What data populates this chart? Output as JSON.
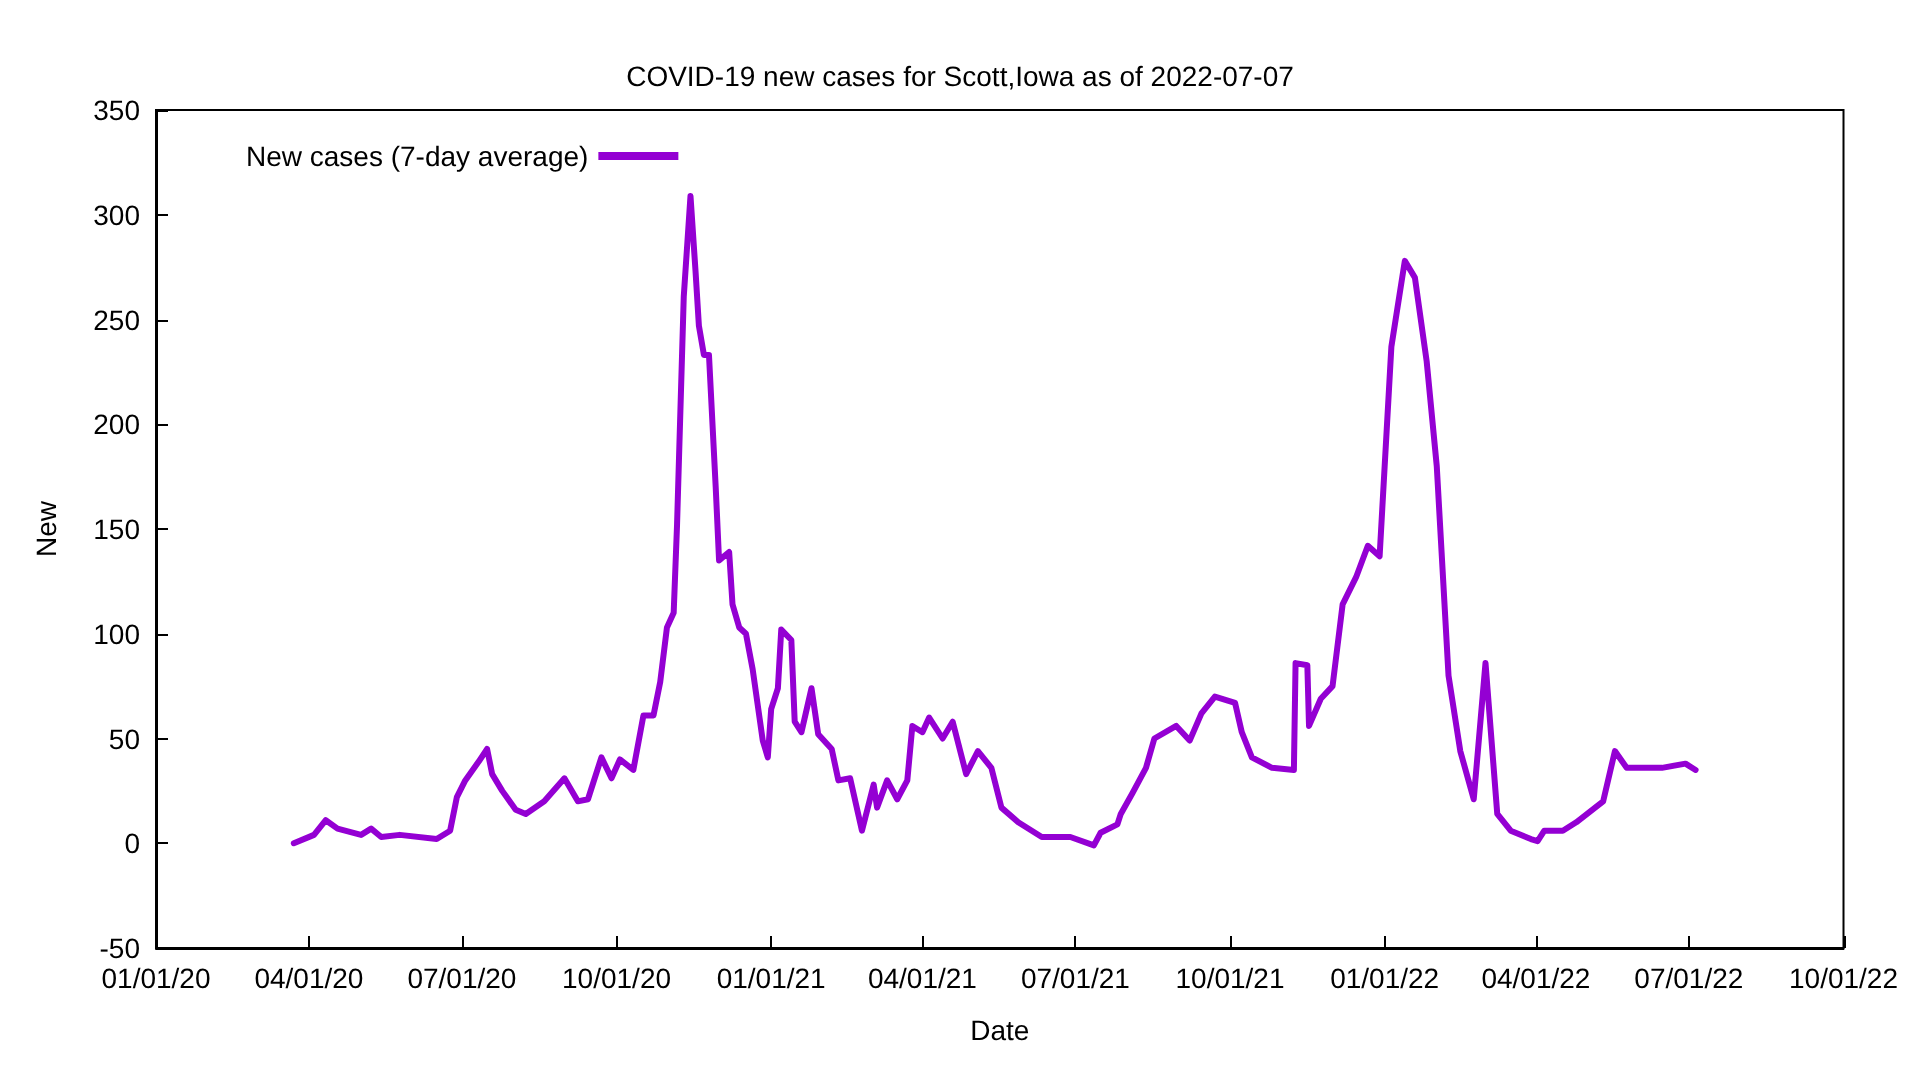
{
  "chart_data": {
    "type": "line",
    "title": "COVID-19 new cases for Scott,Iowa as of 2022-07-07",
    "xlabel": "Date",
    "ylabel": "New",
    "x": [
      "2020-03-23",
      "2020-04-04",
      "2020-04-11",
      "2020-04-18",
      "2020-05-02",
      "2020-05-08",
      "2020-05-14",
      "2020-05-25",
      "2020-06-16",
      "2020-06-24",
      "2020-06-28",
      "2020-07-03",
      "2020-07-11",
      "2020-07-16",
      "2020-07-19",
      "2020-07-25",
      "2020-08-02",
      "2020-08-08",
      "2020-08-19",
      "2020-08-31",
      "2020-09-08",
      "2020-09-14",
      "2020-09-22",
      "2020-09-28",
      "2020-10-03",
      "2020-10-11",
      "2020-10-17",
      "2020-10-23",
      "2020-10-27",
      "2020-10-31",
      "2020-11-04",
      "2020-11-06",
      "2020-11-10",
      "2020-11-14",
      "2020-11-17",
      "2020-11-19",
      "2020-11-22",
      "2020-11-25",
      "2020-11-29",
      "2020-12-01",
      "2020-12-07",
      "2020-12-09",
      "2020-12-13",
      "2020-12-17",
      "2020-12-21",
      "2020-12-27",
      "2020-12-30",
      "2021-01-01",
      "2021-01-05",
      "2021-01-07",
      "2021-01-13",
      "2021-01-15",
      "2021-01-19",
      "2021-01-25",
      "2021-01-29",
      "2021-02-06",
      "2021-02-10",
      "2021-02-17",
      "2021-02-24",
      "2021-03-03",
      "2021-03-05",
      "2021-03-11",
      "2021-03-17",
      "2021-03-23",
      "2021-03-26",
      "2021-04-01",
      "2021-04-05",
      "2021-04-13",
      "2021-04-19",
      "2021-04-27",
      "2021-05-04",
      "2021-05-12",
      "2021-05-18",
      "2021-05-28",
      "2021-06-11",
      "2021-06-28",
      "2021-07-12",
      "2021-07-16",
      "2021-07-26",
      "2021-07-28",
      "2021-08-04",
      "2021-08-12",
      "2021-08-17",
      "2021-08-30",
      "2021-09-07",
      "2021-09-14",
      "2021-09-22",
      "2021-10-04",
      "2021-10-08",
      "2021-10-14",
      "2021-10-26",
      "2021-11-08",
      "2021-11-09",
      "2021-11-16",
      "2021-11-17",
      "2021-11-24",
      "2021-12-01",
      "2021-12-07",
      "2021-12-15",
      "2021-12-22",
      "2021-12-29",
      "2022-01-05",
      "2022-01-13",
      "2022-01-19",
      "2022-01-26",
      "2022-02-01",
      "2022-02-08",
      "2022-02-15",
      "2022-02-23",
      "2022-03-02",
      "2022-03-09",
      "2022-03-17",
      "2022-03-29",
      "2022-04-02",
      "2022-04-06",
      "2022-04-17",
      "2022-04-25",
      "2022-05-03",
      "2022-05-11",
      "2022-05-18",
      "2022-05-25",
      "2022-06-15",
      "2022-06-29",
      "2022-07-05"
    ],
    "series": [
      {
        "name": "New cases (7-day average)",
        "color": "#9400d3",
        "values": [
          0,
          4,
          11,
          7,
          4,
          7,
          3,
          4,
          2,
          6,
          22,
          30,
          39,
          45,
          33,
          25,
          16,
          14,
          20,
          31,
          20,
          21,
          41,
          31,
          40,
          35,
          61,
          61,
          77,
          103,
          110,
          152,
          261,
          309,
          273,
          247,
          233,
          233,
          170,
          135,
          139,
          114,
          103,
          100,
          83,
          49,
          41,
          64,
          74,
          102,
          97,
          58,
          53,
          74,
          52,
          45,
          30,
          31,
          6,
          28,
          17,
          30,
          21,
          30,
          56,
          53,
          60,
          50,
          58,
          33,
          44,
          36,
          17,
          10,
          3,
          3,
          -1,
          5,
          9,
          14,
          24,
          36,
          50,
          56,
          49,
          62,
          70,
          67,
          53,
          41,
          36,
          35,
          86,
          85,
          56,
          69,
          75,
          114,
          127,
          142,
          137,
          237,
          278,
          270,
          230,
          180,
          80,
          44,
          21,
          86,
          14,
          6,
          2,
          1,
          6,
          6,
          10,
          15,
          20,
          44,
          36,
          36,
          38,
          35
        ]
      }
    ],
    "xlim": [
      "2020-01-01",
      "2022-10-01"
    ],
    "xticks": [
      {
        "value": "2020-01-01",
        "label": "01/01/20"
      },
      {
        "value": "2020-04-01",
        "label": "04/01/20"
      },
      {
        "value": "2020-07-01",
        "label": "07/01/20"
      },
      {
        "value": "2020-10-01",
        "label": "10/01/20"
      },
      {
        "value": "2021-01-01",
        "label": "01/01/21"
      },
      {
        "value": "2021-04-01",
        "label": "04/01/21"
      },
      {
        "value": "2021-07-01",
        "label": "07/01/21"
      },
      {
        "value": "2021-10-01",
        "label": "10/01/21"
      },
      {
        "value": "2022-01-01",
        "label": "01/01/22"
      },
      {
        "value": "2022-04-01",
        "label": "04/01/22"
      },
      {
        "value": "2022-07-01",
        "label": "07/01/22"
      },
      {
        "value": "2022-10-01",
        "label": "10/01/22"
      }
    ],
    "ylim": [
      -50,
      350
    ],
    "yticks": [
      -50,
      0,
      50,
      100,
      150,
      200,
      250,
      300,
      350
    ],
    "grid": false,
    "legend": "top left",
    "marker": "none",
    "line_style": "solid"
  }
}
